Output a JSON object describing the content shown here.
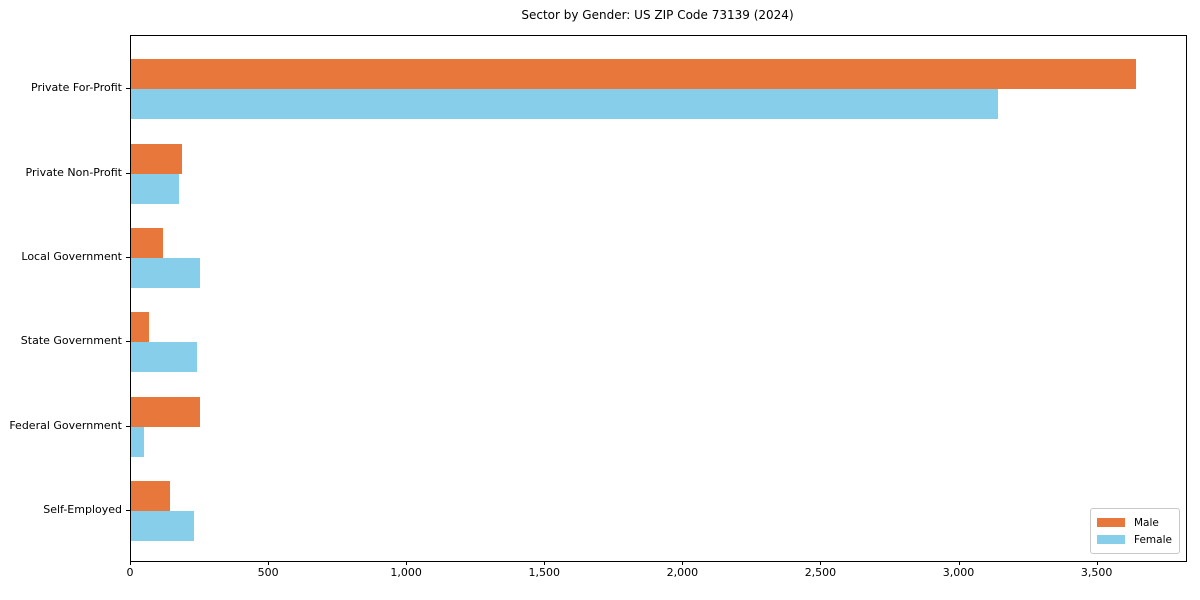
{
  "chart_data": {
    "type": "bar",
    "orientation": "horizontal",
    "title": "Sector by Gender: US ZIP Code 73139 (2024)",
    "categories": [
      "Private For-Profit",
      "Private Non-Profit",
      "Local Government",
      "State Government",
      "Federal Government",
      "Self-Employed"
    ],
    "series": [
      {
        "name": "Male",
        "color": "#E8773B",
        "values": [
          3640,
          185,
          115,
          65,
          250,
          140
        ]
      },
      {
        "name": "Female",
        "color": "#87CEEB",
        "values": [
          3140,
          175,
          250,
          240,
          48,
          228
        ]
      }
    ],
    "xlim": [
      0,
      3820
    ],
    "x_ticks": [
      0,
      500,
      1000,
      1500,
      2000,
      2500,
      3000,
      3500
    ],
    "x_tick_labels": [
      "0",
      "500",
      "1,000",
      "1,500",
      "2,000",
      "2,500",
      "3,000",
      "3,500"
    ],
    "ylabel": "",
    "xlabel": "",
    "grid": false,
    "legend_position": "lower right",
    "spine_color": "#000000",
    "background_color": "#ffffff"
  }
}
